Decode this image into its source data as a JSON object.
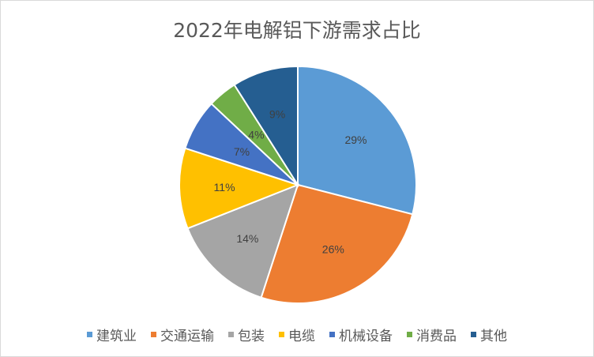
{
  "chart_data": {
    "type": "pie",
    "title": "2022年电解铝下游需求占比",
    "categories": [
      "建筑业",
      "交通运输",
      "包装",
      "电缆",
      "机械设备",
      "消费品",
      "其他"
    ],
    "values": [
      29,
      26,
      14,
      11,
      7,
      4,
      9
    ],
    "labels": [
      "29%",
      "26%",
      "14%",
      "11%",
      "7%",
      "4%",
      "9%"
    ],
    "colors": [
      "#5B9BD5",
      "#ED7D31",
      "#A5A5A5",
      "#FFC000",
      "#4472C4",
      "#70AD47",
      "#255E91"
    ],
    "legend_position": "bottom",
    "start_angle": "top, clockwise"
  }
}
